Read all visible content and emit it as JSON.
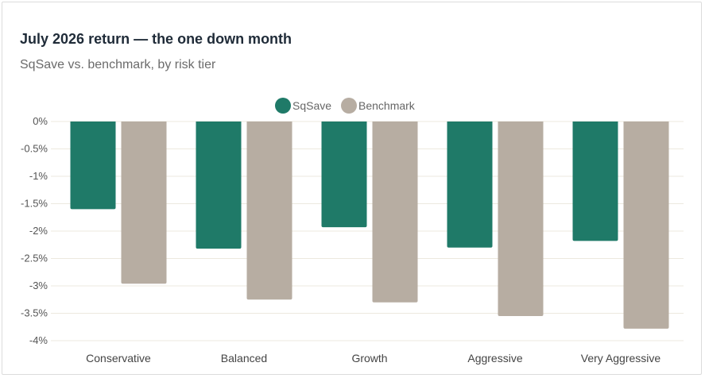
{
  "colors": {
    "sqsave": "#1f7a68",
    "benchmark": "#b7ada2",
    "grid": "#ece9df"
  },
  "chart_data": {
    "type": "bar",
    "title": "July 2026 return — the one down month",
    "subtitle": "SqSave vs. benchmark, by risk tier",
    "categories": [
      "Conservative",
      "Balanced",
      "Growth",
      "Aggressive",
      "Very Aggressive"
    ],
    "series": [
      {
        "name": "SqSave",
        "values": [
          -1.6,
          -2.32,
          -1.93,
          -2.3,
          -2.18
        ]
      },
      {
        "name": "Benchmark",
        "values": [
          -2.96,
          -3.25,
          -3.3,
          -3.55,
          -3.78
        ]
      }
    ],
    "ylim": [
      -4,
      0
    ],
    "yticks": [
      0,
      -0.5,
      -1,
      -1.5,
      -2,
      -2.5,
      -3,
      -3.5,
      -4
    ],
    "ytick_labels": [
      "0%",
      "-0.5%",
      "-1%",
      "-1.5%",
      "-2%",
      "-2.5%",
      "-3%",
      "-3.5%",
      "-4%"
    ],
    "grid": true,
    "legend": "top-center"
  }
}
